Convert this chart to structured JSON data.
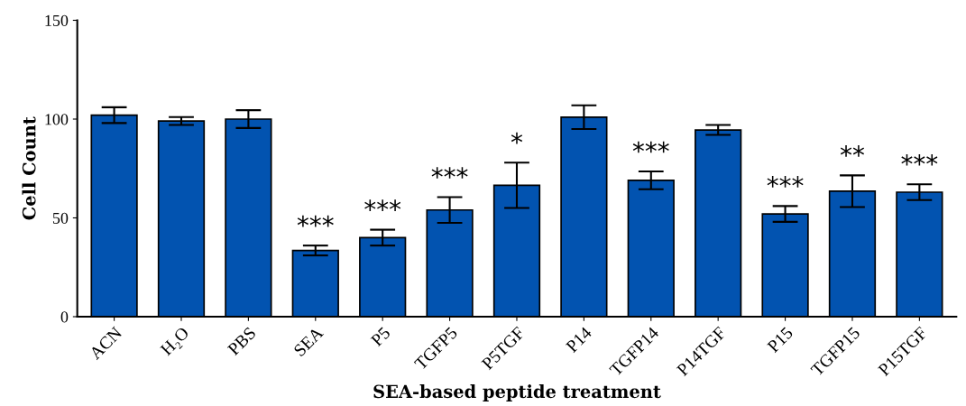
{
  "chart_data": {
    "type": "bar",
    "xlabel": "SEA-based peptide treatment",
    "ylabel": "Cell Count",
    "categories": [
      "ACN",
      "H₂O",
      "PBS",
      "SEA",
      "P5",
      "TGFP5",
      "P5TGF",
      "P14",
      "TGFP14",
      "P14TGF",
      "P15",
      "TGFP15",
      "P15TGF"
    ],
    "values": [
      102,
      99,
      100,
      33.5,
      40,
      54,
      66.5,
      101,
      69,
      94.5,
      52,
      63.5,
      63
    ],
    "errors": [
      4,
      2,
      4.5,
      2.5,
      4,
      6.5,
      11.5,
      6,
      4.5,
      2.5,
      4,
      8,
      4
    ],
    "color": "#0253b0",
    "ylim": [
      0,
      150
    ],
    "yticks": [
      0,
      50,
      100,
      150
    ],
    "grid": false,
    "legend": false,
    "value_labels": [
      null,
      null,
      null,
      "***",
      "***",
      "***",
      "*",
      null,
      "***",
      null,
      "***",
      "**",
      "***"
    ]
  }
}
